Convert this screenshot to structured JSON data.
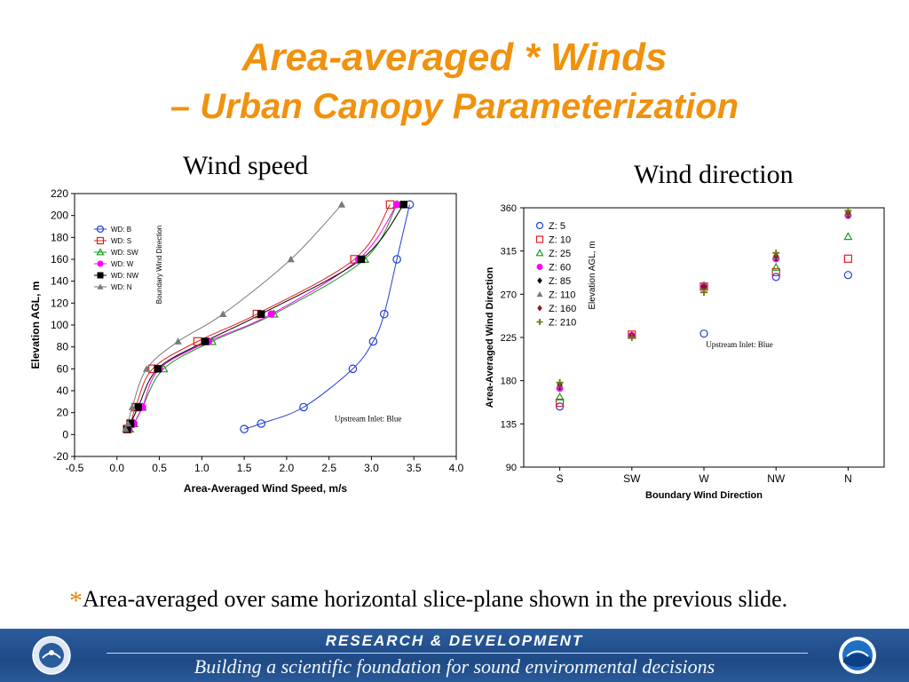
{
  "slide": {
    "title_line1": "Area-averaged * Winds",
    "title_line2": "– Urban Canopy Parameterization",
    "left_subtitle": "Wind speed",
    "right_subtitle": "Wind direction",
    "footnote_star": "*",
    "footnote_text": "Area-averaged over same horizontal slice-plane shown in the previous slide.",
    "banner_heading": "RESEARCH & DEVELOPMENT",
    "banner_tagline": "Building a scientific foundation for sound environmental decisions"
  },
  "chart_data": [
    {
      "type": "line",
      "xlabel": "Area-Averaged Wind Speed, m/s",
      "ylabel": "Elevation AGL, m",
      "xlim": [
        -0.5,
        4.0
      ],
      "ylim": [
        -20,
        220
      ],
      "xticks": [
        "-0.5",
        "0.0",
        "0.5",
        "1.0",
        "1.5",
        "2.0",
        "2.5",
        "3.0",
        "3.5",
        "4.0"
      ],
      "yticks": [
        "-20",
        "0",
        "20",
        "40",
        "60",
        "80",
        "100",
        "120",
        "140",
        "160",
        "180",
        "200",
        "220"
      ],
      "legend_title": "Boundary Wind Direction",
      "legend_position": "top-left",
      "annotation": "Upstream Inlet: Blue",
      "series": [
        {
          "name": "WD: B",
          "color": "#1f3fd6",
          "marker": "circle-open",
          "points": [
            [
              1.5,
              5
            ],
            [
              1.7,
              10
            ],
            [
              2.2,
              25
            ],
            [
              2.78,
              60
            ],
            [
              3.02,
              85
            ],
            [
              3.15,
              110
            ],
            [
              3.3,
              160
            ],
            [
              3.45,
              210
            ]
          ]
        },
        {
          "name": "WD: S",
          "color": "#e02020",
          "marker": "square-open",
          "points": [
            [
              0.12,
              5
            ],
            [
              0.16,
              10
            ],
            [
              0.22,
              25
            ],
            [
              0.42,
              60
            ],
            [
              0.95,
              85
            ],
            [
              1.65,
              110
            ],
            [
              2.8,
              160
            ],
            [
              3.22,
              210
            ]
          ]
        },
        {
          "name": "WD: SW",
          "color": "#1a9a1a",
          "marker": "triangle-open",
          "points": [
            [
              0.15,
              5
            ],
            [
              0.2,
              10
            ],
            [
              0.3,
              25
            ],
            [
              0.55,
              60
            ],
            [
              1.12,
              85
            ],
            [
              1.85,
              110
            ],
            [
              2.92,
              160
            ],
            [
              3.3,
              210
            ]
          ]
        },
        {
          "name": "WD: W",
          "color": "#ff00ff",
          "marker": "circle-filled",
          "points": [
            [
              0.14,
              5
            ],
            [
              0.2,
              10
            ],
            [
              0.3,
              25
            ],
            [
              0.5,
              60
            ],
            [
              1.08,
              85
            ],
            [
              1.82,
              110
            ],
            [
              2.85,
              160
            ],
            [
              3.3,
              210
            ]
          ]
        },
        {
          "name": "WD: NW",
          "color": "#000000",
          "marker": "square-filled",
          "points": [
            [
              0.12,
              5
            ],
            [
              0.16,
              10
            ],
            [
              0.25,
              25
            ],
            [
              0.48,
              60
            ],
            [
              1.04,
              85
            ],
            [
              1.7,
              110
            ],
            [
              2.88,
              160
            ],
            [
              3.38,
              210
            ]
          ]
        },
        {
          "name": "WD: N",
          "color": "#7a7a7a",
          "marker": "triangle-filled",
          "points": [
            [
              0.1,
              5
            ],
            [
              0.13,
              10
            ],
            [
              0.18,
              25
            ],
            [
              0.35,
              60
            ],
            [
              0.72,
              85
            ],
            [
              1.25,
              110
            ],
            [
              2.05,
              160
            ],
            [
              2.65,
              210
            ]
          ]
        }
      ]
    },
    {
      "type": "scatter",
      "xlabel": "Boundary Wind Direction",
      "ylabel": "Area-Averaged Wind Direction",
      "categories": [
        "S",
        "SW",
        "W",
        "NW",
        "N"
      ],
      "ylim": [
        90,
        360
      ],
      "yticks": [
        "90",
        "135",
        "180",
        "225",
        "270",
        "315",
        "360"
      ],
      "legend_title": "Elevation AGL, m",
      "legend_position": "top-left",
      "annotation": "Upstream Inlet: Blue",
      "series": [
        {
          "name": "Z: 5",
          "color": "#1f3fd6",
          "marker": "circle-open",
          "values": [
            153,
            null,
            229,
            288,
            290
          ]
        },
        {
          "name": "Z: 10",
          "color": "#e02020",
          "marker": "square-open",
          "values": [
            157,
            228,
            278,
            293,
            307
          ]
        },
        {
          "name": "Z: 25",
          "color": "#1a9a1a",
          "marker": "triangle-open",
          "values": [
            163,
            227,
            279,
            298,
            330
          ]
        },
        {
          "name": "Z: 60",
          "color": "#ff00ff",
          "marker": "circle-filled",
          "values": [
            172,
            227,
            278,
            307,
            352
          ]
        },
        {
          "name": "Z: 85",
          "color": "#000000",
          "marker": "diamond-filled",
          "values": [
            174,
            227,
            278,
            308,
            353
          ]
        },
        {
          "name": "Z: 110",
          "color": "#7a7a7a",
          "marker": "triangle-filled",
          "values": [
            175,
            227,
            278,
            309,
            354
          ]
        },
        {
          "name": "Z: 160",
          "color": "#8b1a1a",
          "marker": "diamond-filled",
          "values": [
            176,
            227,
            277,
            310,
            355
          ]
        },
        {
          "name": "Z: 210",
          "color": "#6a7a10",
          "marker": "plus",
          "values": [
            178,
            225,
            272,
            313,
            357
          ]
        }
      ]
    }
  ]
}
